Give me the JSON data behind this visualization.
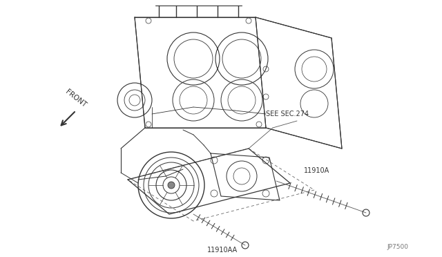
{
  "background_color": "#ffffff",
  "line_color": "#333333",
  "thin_line": "#444444",
  "dash_color": "#666666",
  "text_color": "#333333",
  "fig_width": 6.4,
  "fig_height": 3.72,
  "dpi": 100,
  "labels": {
    "front": "FRONT",
    "see_sec": "SEE SEC.274",
    "part1": "11910A",
    "part2": "11910AA",
    "code": "JP7500"
  }
}
